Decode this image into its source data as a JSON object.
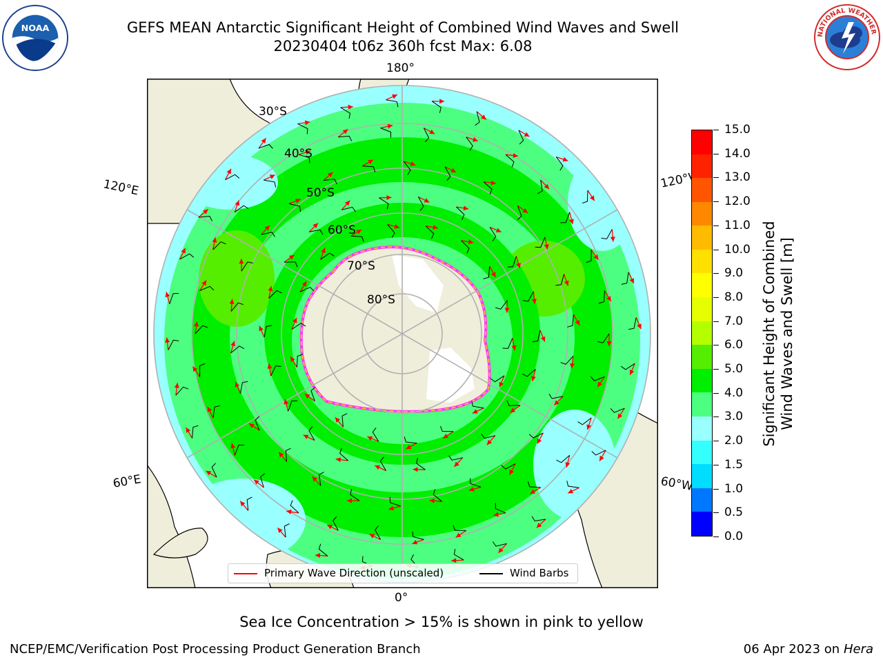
{
  "title": {
    "line1": "GEFS MEAN Antarctic Significant Height of Combined Wind Waves and Swell",
    "line2": "20230404 t06z 360h fcst   Max: 6.08"
  },
  "logos": {
    "left": {
      "icon": "noaa-logo-icon",
      "text": "NOAA"
    },
    "right": {
      "icon": "nws-logo-icon",
      "text": "NATIONAL WEATHER SERVICE"
    }
  },
  "map": {
    "projection": "south polar stereographic",
    "longitude_labels": {
      "top": "180°",
      "bottom": "0°",
      "upper_left": "120°E",
      "upper_right": "120°W",
      "lower_left": "60°E",
      "lower_right": "60°W"
    },
    "latitude_labels": [
      "30°S",
      "40°S",
      "50°S",
      "60°S",
      "70°S",
      "80°S"
    ],
    "field": "significant wave height [m]",
    "max_value": 6.08,
    "colors": {
      "land": "#efeedb",
      "ocean_outside_plot": "#ffffff",
      "ice_edge": "#ff33ff",
      "ice_edge_alt": "#ffb03b",
      "grid": "#b0b0b0",
      "arrows": "#ff0000",
      "barbs": "#000000"
    }
  },
  "colorbar": {
    "label": "Significant Height of Combined Wind Waves and Swell [m]",
    "label_line1": "Significant Height of Combined",
    "label_line2": "Wind Waves and Swell [m]",
    "ticks": [
      "0.0",
      "0.5",
      "1.0",
      "1.5",
      "2.0",
      "3.0",
      "4.0",
      "5.0",
      "6.0",
      "7.0",
      "8.0",
      "9.0",
      "10.0",
      "11.0",
      "12.0",
      "13.0",
      "14.0",
      "15.0"
    ],
    "colors": [
      "#0000ff",
      "#0077ff",
      "#00ddff",
      "#33ffff",
      "#99ffff",
      "#4dff80",
      "#00ee00",
      "#55ee00",
      "#b3ff00",
      "#e5ff00",
      "#ffff00",
      "#ffe000",
      "#ffbb00",
      "#ff8800",
      "#ff5500",
      "#ff2200",
      "#ff0000"
    ]
  },
  "legend": {
    "items": [
      {
        "label": "Primary Wave Direction (unscaled)",
        "color": "#ff0000"
      },
      {
        "label": "Wind Barbs",
        "color": "#000000"
      }
    ]
  },
  "note": "Sea Ice Concentration > 15% is shown in pink to yellow",
  "footer": {
    "left": "NCEP/EMC/Verification Post Processing Product Generation Branch",
    "right_date": "06 Apr 2023 on ",
    "right_host": "Hera"
  }
}
